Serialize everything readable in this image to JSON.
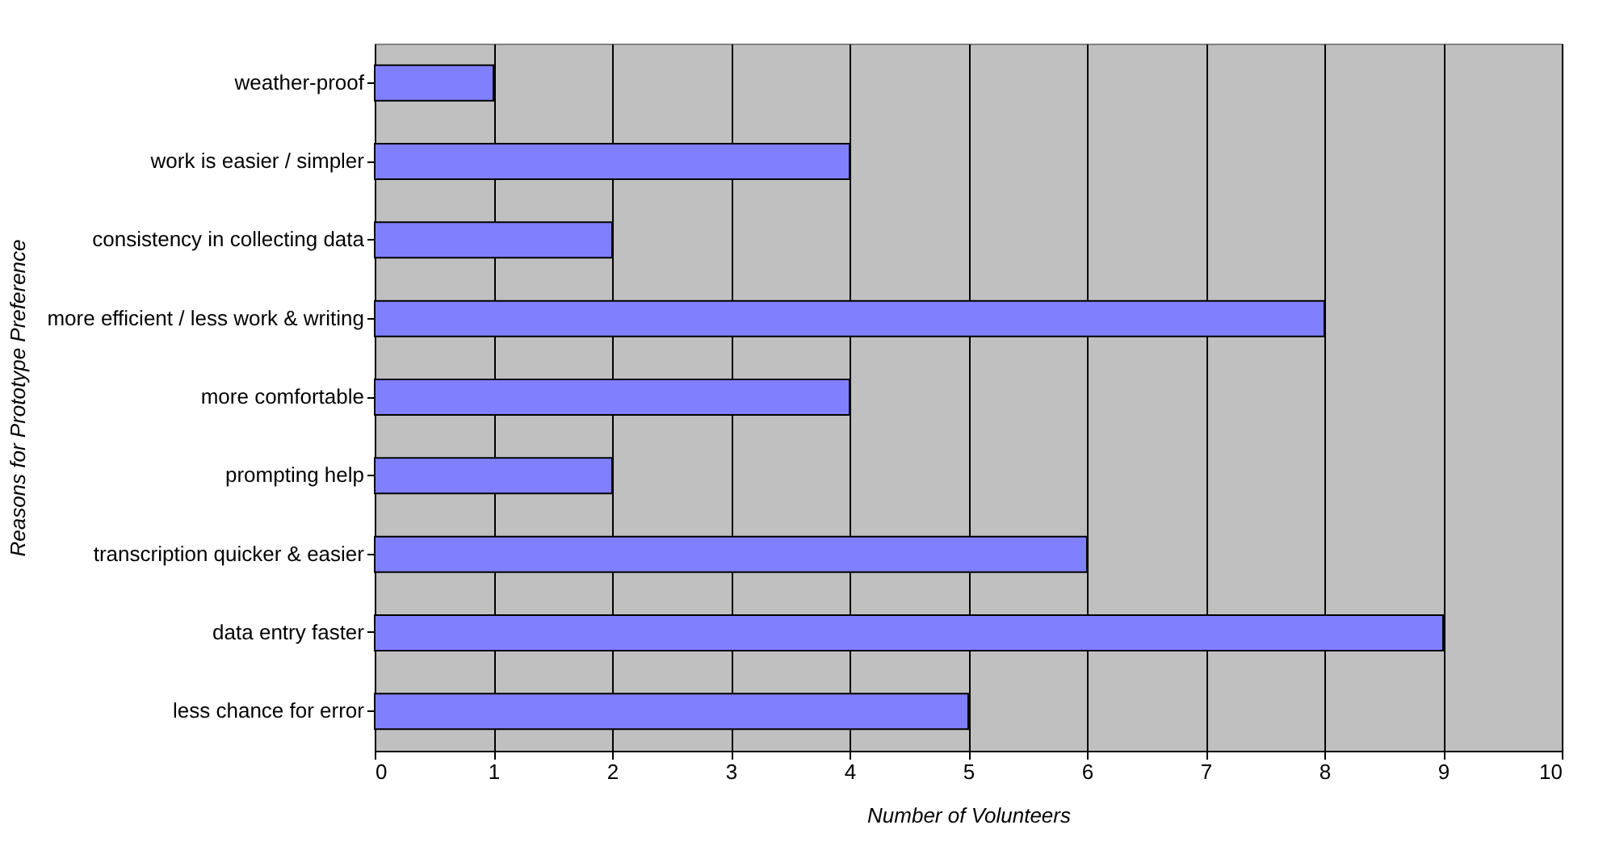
{
  "chart_data": {
    "type": "bar",
    "orientation": "horizontal",
    "categories": [
      "weather-proof",
      "work is easier / simpler",
      "consistency in collecting data",
      "more efficient / less work & writing",
      "more comfortable",
      "prompting help",
      "transcription quicker & easier",
      "data entry faster",
      "less chance for error"
    ],
    "values": [
      1,
      4,
      2,
      8,
      4,
      2,
      6,
      9,
      5
    ],
    "color": "#8080ff",
    "xlim": [
      0,
      10
    ],
    "xticks": [
      0,
      1,
      2,
      3,
      4,
      5,
      6,
      7,
      8,
      9,
      10
    ],
    "xlabel": "Number of Volunteers",
    "ylabel": "Reasons for Prototype Preference",
    "grid": "x"
  }
}
